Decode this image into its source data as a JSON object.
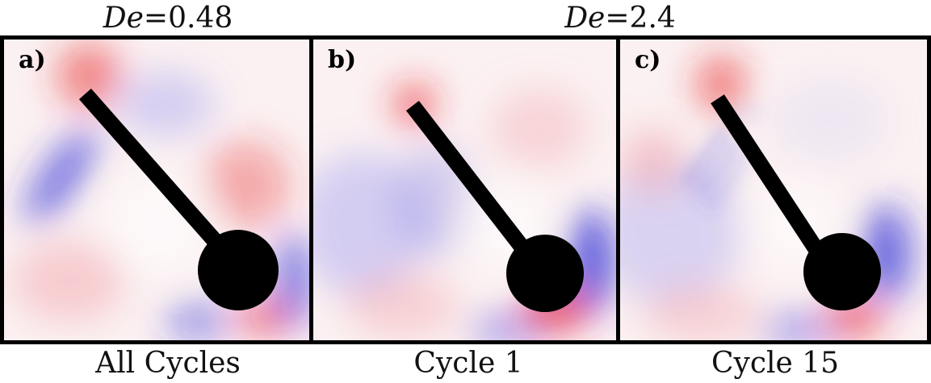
{
  "header": {
    "left": {
      "symbol": "De",
      "operator": "=",
      "value": "0.48"
    },
    "right": {
      "symbol": "De",
      "operator": "=",
      "value": "2.4"
    }
  },
  "panels": [
    {
      "letter": "a)",
      "caption": "All Cycles"
    },
    {
      "letter": "b)",
      "caption": "Cycle 1"
    },
    {
      "letter": "c)",
      "caption": "Cycle 15"
    }
  ],
  "colors": {
    "positive": "#e8242a",
    "negative": "#2b2bd6",
    "neutral": "#fbf1f2",
    "object": "#000000"
  }
}
